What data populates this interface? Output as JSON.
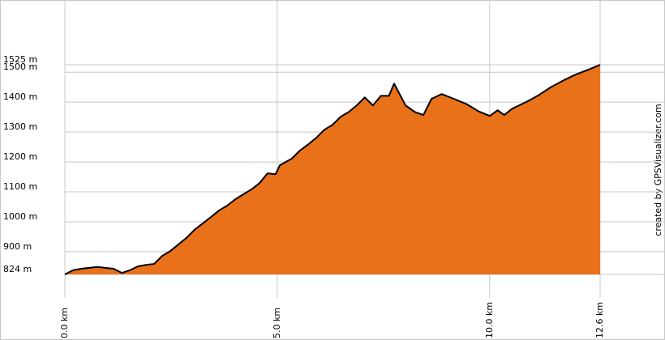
{
  "chart_data": {
    "type": "area",
    "x": [
      0,
      0.19,
      0.38,
      0.57,
      0.76,
      0.95,
      1.15,
      1.34,
      1.53,
      1.72,
      1.91,
      2.1,
      2.29,
      2.48,
      2.67,
      2.86,
      3.05,
      3.24,
      3.44,
      3.63,
      3.82,
      4.01,
      4.2,
      4.39,
      4.58,
      4.77,
      4.96,
      5.06,
      5.34,
      5.53,
      5.73,
      5.92,
      6.11,
      6.3,
      6.49,
      6.68,
      6.87,
      7.06,
      7.25,
      7.44,
      7.63,
      7.75,
      8.02,
      8.24,
      8.44,
      8.63,
      8.87,
      9.16,
      9.45,
      9.73,
      10.0,
      10.19,
      10.34,
      10.53,
      10.88,
      11.16,
      11.45,
      11.74,
      12.02,
      12.31,
      12.6
    ],
    "values": [
      824,
      838,
      843,
      846,
      849,
      846,
      843,
      829,
      838,
      851,
      856,
      859,
      886,
      902,
      924,
      946,
      973,
      994,
      1016,
      1038,
      1054,
      1075,
      1092,
      1108,
      1129,
      1162,
      1159,
      1189,
      1211,
      1238,
      1259,
      1281,
      1308,
      1324,
      1351,
      1367,
      1389,
      1416,
      1389,
      1421,
      1421,
      1462,
      1389,
      1367,
      1357,
      1411,
      1427,
      1411,
      1394,
      1370,
      1354,
      1373,
      1357,
      1378,
      1402,
      1424,
      1451,
      1473,
      1492,
      1508,
      1525
    ],
    "color": "#e8711a",
    "line_color": "#000000",
    "xlim": [
      0,
      12.6
    ],
    "xticks": [
      {
        "value": 0,
        "label": "0.0 km"
      },
      {
        "value": 5,
        "label": "5.0 km"
      },
      {
        "value": 10,
        "label": "10.0 km"
      },
      {
        "value": 12.6,
        "label": "12.6 km"
      }
    ],
    "ylim": [
      824,
      1525
    ],
    "yticks": [
      {
        "value": 824,
        "label": "824 m"
      },
      {
        "value": 900,
        "label": "900 m"
      },
      {
        "value": 1000,
        "label": "1000 m"
      },
      {
        "value": 1100,
        "label": "1100 m"
      },
      {
        "value": 1200,
        "label": "1200 m"
      },
      {
        "value": 1300,
        "label": "1300 m"
      },
      {
        "value": 1400,
        "label": "1400 m"
      },
      {
        "value": 1500,
        "label": "1500 m"
      },
      {
        "value": 1525,
        "label": "1525 m"
      }
    ],
    "grid": true,
    "credit": "created by GPSVisualizer.com"
  }
}
